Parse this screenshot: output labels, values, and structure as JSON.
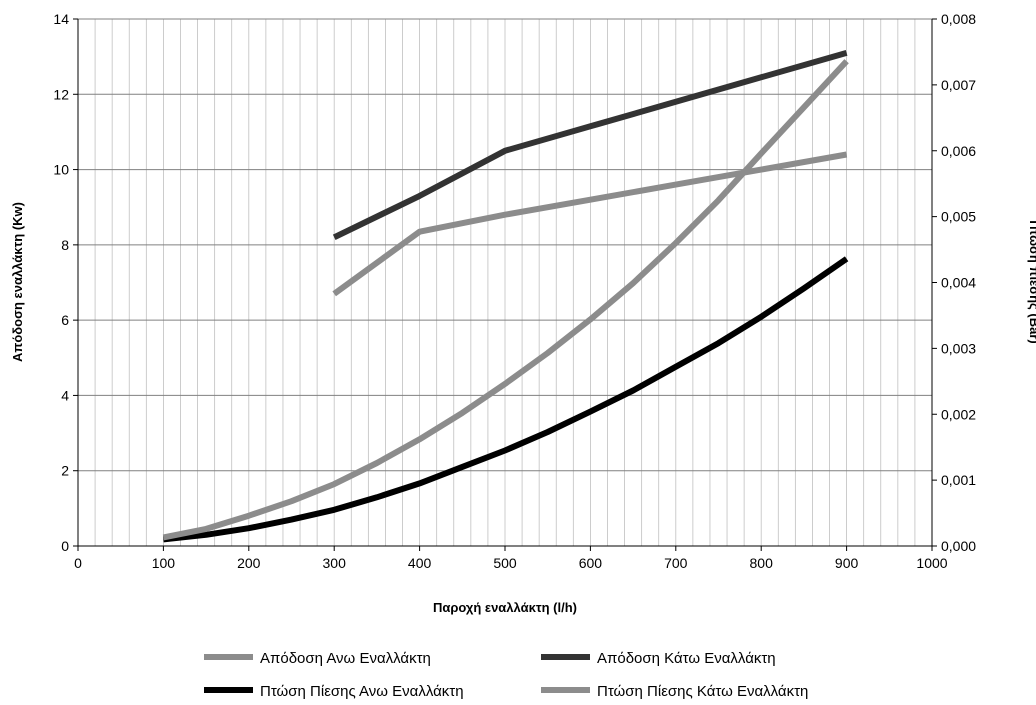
{
  "chart_data": {
    "type": "line",
    "xlabel": "Παροχή εναλλάκτη (l/h)",
    "ylabel": "Απόδοση εναλλάκτη (Kw)",
    "y2label": "Πτώση πίεσης (Bar)",
    "xlim": [
      0,
      1000
    ],
    "ylim": [
      0,
      14
    ],
    "y2lim": [
      0,
      0.008
    ],
    "xticks": [
      "0",
      "100",
      "200",
      "300",
      "400",
      "500",
      "600",
      "700",
      "800",
      "900",
      "1000"
    ],
    "yticks": [
      "0",
      "2",
      "4",
      "6",
      "8",
      "10",
      "12",
      "14"
    ],
    "y2ticks": [
      "0,000",
      "0,001",
      "0,002",
      "0,003",
      "0,004",
      "0,005",
      "0,006",
      "0,007",
      "0,008"
    ],
    "grid": true,
    "legend_position": "bottom",
    "series": [
      {
        "name": "Απόδοση Ανω Εναλλάκτη",
        "axis": "left",
        "color": "#8c8c8c",
        "x": [
          300,
          400,
          500,
          600,
          700,
          800,
          900
        ],
        "y": [
          6.7,
          8.35,
          8.8,
          9.2,
          9.6,
          10.0,
          10.4
        ]
      },
      {
        "name": "Απόδοση Κάτω Εναλλάκτη",
        "axis": "left",
        "color": "#333333",
        "x": [
          300,
          400,
          500,
          600,
          700,
          800,
          900
        ],
        "y": [
          8.2,
          9.3,
          10.5,
          11.15,
          11.8,
          12.45,
          13.1
        ]
      },
      {
        "name": "Πτώση Πίεσης Ανω Εναλλάκτη",
        "axis": "right",
        "color": "#000000",
        "x": [
          100,
          150,
          200,
          250,
          300,
          350,
          400,
          450,
          500,
          550,
          600,
          650,
          700,
          750,
          800,
          850,
          900
        ],
        "y": [
          0.0001,
          0.00017,
          0.00027,
          0.0004,
          0.00055,
          0.00074,
          0.00095,
          0.0012,
          0.00145,
          0.00173,
          0.00204,
          0.00236,
          0.00272,
          0.00308,
          0.00348,
          0.00391,
          0.00436
        ]
      },
      {
        "name": "Πτώση Πίεσης Κάτω Εναλλάκτη",
        "axis": "right",
        "color": "#8c8c8c",
        "x": [
          100,
          150,
          200,
          250,
          300,
          350,
          400,
          450,
          500,
          550,
          600,
          650,
          700,
          750,
          800,
          850,
          900
        ],
        "y": [
          0.00013,
          0.00026,
          0.00046,
          0.00068,
          0.00094,
          0.00126,
          0.00162,
          0.00202,
          0.00246,
          0.00293,
          0.00344,
          0.00399,
          0.0046,
          0.00525,
          0.00596,
          0.00666,
          0.00736
        ]
      }
    ]
  }
}
